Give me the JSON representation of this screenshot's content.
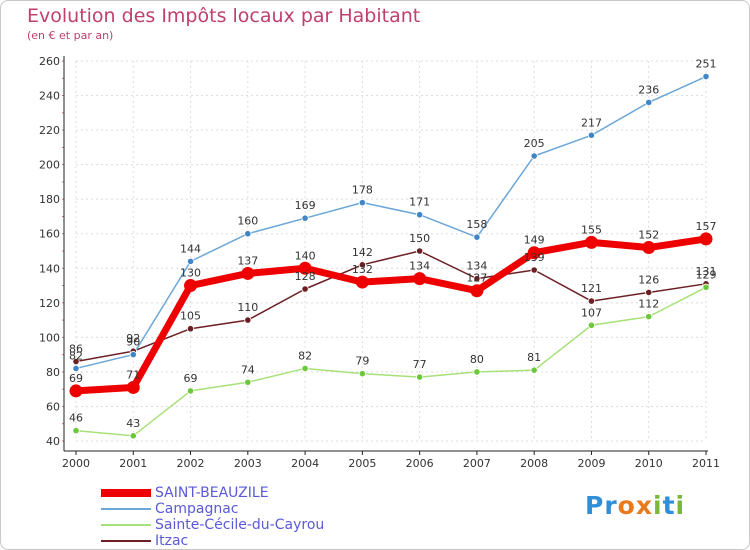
{
  "header": {
    "title": "Evolution des Impôts locaux par Habitant",
    "subtitle": "(en € et par an)"
  },
  "brand": {
    "name": "Proxiti",
    "letters": [
      "P",
      "r",
      "o",
      "x",
      "i",
      "t",
      "i"
    ],
    "colors": [
      "#2f8fd8",
      "#2f8fd8",
      "#e87a1e",
      "#e87a1e",
      "#7ab83a",
      "#2f8fd8",
      "#7ab83a"
    ]
  },
  "chart_data": {
    "type": "line",
    "title": "Evolution des Impôts locaux par Habitant",
    "subtitle": "(en € et par an)",
    "xlabel": "",
    "ylabel": "",
    "x": [
      "2000",
      "2001",
      "2002",
      "2003",
      "2004",
      "2005",
      "2006",
      "2007",
      "2008",
      "2009",
      "2010",
      "2011"
    ],
    "ylim": [
      40,
      260
    ],
    "yticks": [
      40,
      60,
      80,
      100,
      120,
      140,
      160,
      180,
      200,
      220,
      240,
      260
    ],
    "grid": true,
    "legend_position": "bottom-left",
    "series": [
      {
        "name": "Itzac",
        "color": "#6b1f24",
        "marker_color": "#6b1f24",
        "emphasis": false,
        "values": [
          86,
          92,
          105,
          110,
          128,
          142,
          150,
          134,
          139,
          121,
          126,
          131
        ]
      },
      {
        "name": "Sainte-Cécile-du-Cayrou",
        "color": "#a8e07a",
        "marker_color": "#6cc83a",
        "emphasis": false,
        "values": [
          46,
          43,
          69,
          74,
          82,
          79,
          77,
          80,
          81,
          107,
          112,
          129
        ]
      },
      {
        "name": "Campagnac",
        "color": "#6aa6d8",
        "marker_color": "#3f86c8",
        "emphasis": false,
        "values": [
          82,
          90,
          144,
          160,
          169,
          178,
          171,
          158,
          205,
          217,
          236,
          251
        ]
      },
      {
        "name": "SAINT-BEAUZILE",
        "color": "#ee0000",
        "marker_color": "#ee0000",
        "emphasis": true,
        "values": [
          69,
          71,
          130,
          137,
          140,
          132,
          134,
          127,
          149,
          155,
          152,
          157
        ]
      }
    ],
    "legend_order": [
      "SAINT-BEAUZILE",
      "Campagnac",
      "Sainte-Cécile-du-Cayrou",
      "Itzac"
    ]
  }
}
